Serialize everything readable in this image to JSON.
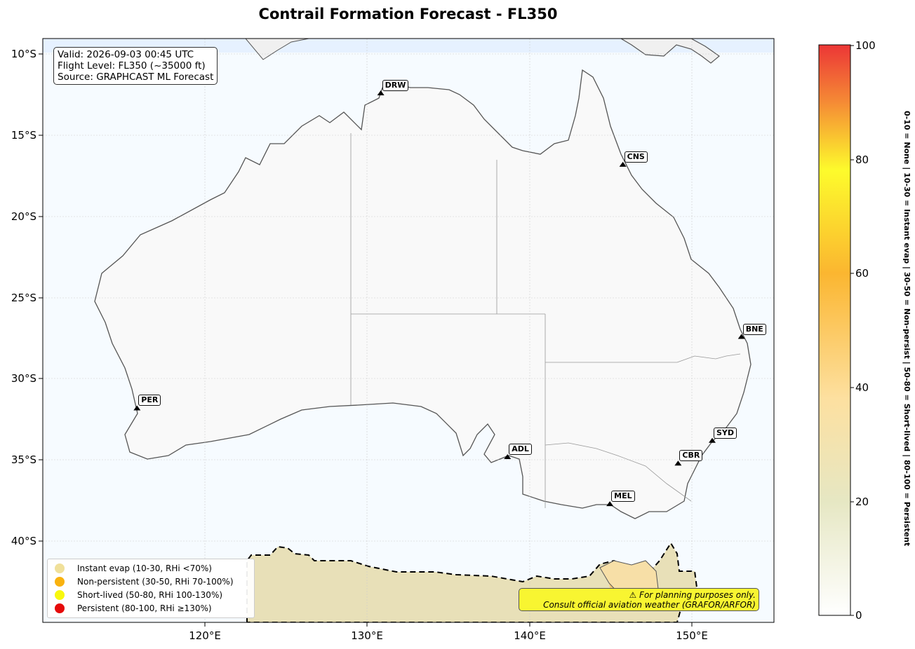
{
  "title": "Contrail Formation Forecast - FL350",
  "info": {
    "valid": "Valid: 2026-09-03 00:45 UTC",
    "flight_level": "Flight Level: FL350 (~35000 ft)",
    "source": "Source: GRAPHCAST ML Forecast"
  },
  "axes": {
    "lat_ticks": [
      "10°S",
      "15°S",
      "20°S",
      "25°S",
      "30°S",
      "35°S",
      "40°S"
    ],
    "lon_ticks": [
      "120°E",
      "130°E",
      "140°E",
      "150°E"
    ]
  },
  "cities": [
    {
      "code": "DRW",
      "lon": 130.8,
      "lat": -12.5
    },
    {
      "code": "CNS",
      "lon": 145.7,
      "lat": -16.9
    },
    {
      "code": "BNE",
      "lon": 153.0,
      "lat": -27.5
    },
    {
      "code": "PER",
      "lon": 115.8,
      "lat": -31.9
    },
    {
      "code": "ADL",
      "lon": 138.6,
      "lat": -34.9
    },
    {
      "code": "SYD",
      "lon": 151.2,
      "lat": -33.9
    },
    {
      "code": "CBR",
      "lon": 149.1,
      "lat": -35.3
    },
    {
      "code": "MEL",
      "lon": 144.9,
      "lat": -37.8
    }
  ],
  "legend": [
    {
      "label": "Instant evap (10-30, RHi <70%)",
      "color": "#f0e09a"
    },
    {
      "label": "Non-persistent (30-50, RHi 70-100%)",
      "color": "#f9b20f"
    },
    {
      "label": "Short-lived (50-80, RHi 100-130%)",
      "color": "#f8f80d"
    },
    {
      "label": "Persistent (80-100, RHi ≥130%)",
      "color": "#e50a0a"
    }
  ],
  "warning": {
    "line1": "⚠ For planning purposes only.",
    "line2": "Consult official aviation weather (GRAFOR/ARFOR)"
  },
  "colorbar": {
    "ticks": [
      "0",
      "20",
      "40",
      "60",
      "80",
      "100"
    ],
    "description": "0-10 = None  |  10-30 = Instant evap  |  30-50 = Non-persist  |  50-80 = Short-lived  |  80-100 = Persistent"
  },
  "colors": {
    "ocean": "#f6fbff",
    "land": "#f9f9f9",
    "forecast_zone": "#e8e0b8"
  }
}
